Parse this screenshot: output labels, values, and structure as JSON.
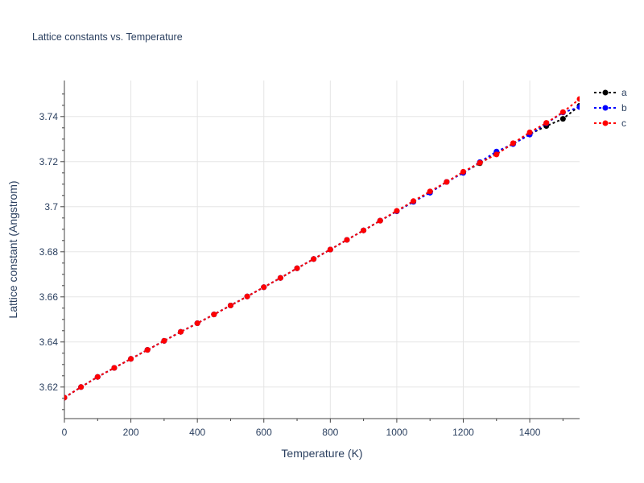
{
  "chart_data": {
    "type": "line",
    "title": "Lattice constants vs. Temperature",
    "xlabel": "Temperature (K)",
    "ylabel": "Lattice constant (Angstrom)",
    "xlim": [
      0,
      1550
    ],
    "ylim": [
      3.606,
      3.756
    ],
    "xticks": [
      0,
      200,
      400,
      600,
      800,
      1000,
      1200,
      1400
    ],
    "yticks": [
      3.62,
      3.64,
      3.66,
      3.68,
      3.7,
      3.72,
      3.74
    ],
    "ytick_labels": [
      "3.62",
      "3.64",
      "3.66",
      "3.68",
      "3.7",
      "3.72",
      "3.74"
    ],
    "grid": true,
    "legend_position": "top-right",
    "line_style": "dotted",
    "x": [
      0,
      50,
      100,
      150,
      200,
      250,
      300,
      350,
      400,
      450,
      500,
      550,
      600,
      650,
      700,
      750,
      800,
      850,
      900,
      950,
      1000,
      1050,
      1100,
      1150,
      1200,
      1250,
      1300,
      1350,
      1400,
      1450,
      1500,
      1550
    ],
    "series": [
      {
        "name": "a",
        "color": "#000000",
        "values": [
          3.6153,
          3.62,
          3.6245,
          3.6285,
          3.6325,
          3.6365,
          3.6405,
          3.6445,
          3.6483,
          3.6522,
          3.6562,
          3.6602,
          3.6643,
          3.6684,
          3.6727,
          3.6768,
          3.681,
          3.6853,
          3.6895,
          3.6938,
          3.698,
          3.7022,
          3.7065,
          3.711,
          3.7152,
          3.7193,
          3.7235,
          3.728,
          3.7322,
          3.7358,
          3.739,
          3.7448
        ]
      },
      {
        "name": "b",
        "color": "#0000ff",
        "values": [
          3.6153,
          3.62,
          3.6245,
          3.6285,
          3.6325,
          3.6365,
          3.6405,
          3.6445,
          3.6483,
          3.6522,
          3.6562,
          3.6602,
          3.6643,
          3.6684,
          3.6727,
          3.6768,
          3.681,
          3.6853,
          3.6895,
          3.6938,
          3.698,
          3.7022,
          3.7062,
          3.711,
          3.715,
          3.7198,
          3.7245,
          3.7278,
          3.732,
          3.737,
          3.7418,
          3.7442
        ]
      },
      {
        "name": "c",
        "color": "#ff0000",
        "values": [
          3.6153,
          3.62,
          3.6245,
          3.6285,
          3.6325,
          3.6365,
          3.6405,
          3.6445,
          3.6483,
          3.6522,
          3.6562,
          3.6602,
          3.6643,
          3.6684,
          3.6727,
          3.6768,
          3.681,
          3.6853,
          3.6895,
          3.6938,
          3.6982,
          3.7025,
          3.7068,
          3.711,
          3.7155,
          3.7195,
          3.7232,
          3.7282,
          3.733,
          3.7372,
          3.742,
          3.7478
        ]
      }
    ]
  }
}
